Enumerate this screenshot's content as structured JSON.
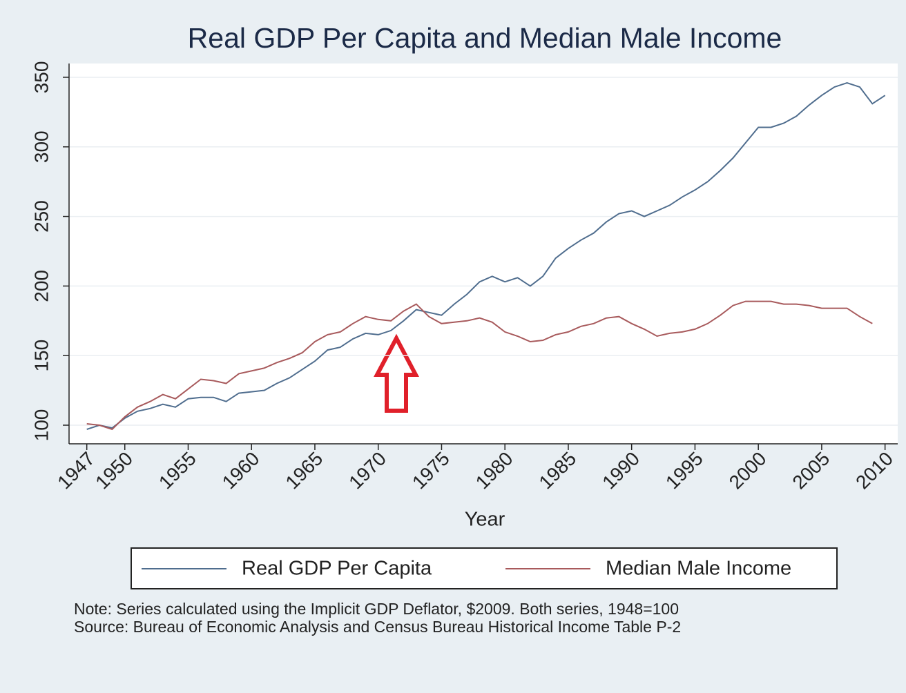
{
  "chart_data": {
    "type": "line",
    "title": "Real GDP Per Capita and Median Male Income",
    "xlabel": "Year",
    "x": [
      1947,
      1948,
      1949,
      1950,
      1951,
      1952,
      1953,
      1954,
      1955,
      1956,
      1957,
      1958,
      1959,
      1960,
      1961,
      1962,
      1963,
      1964,
      1965,
      1966,
      1967,
      1968,
      1969,
      1970,
      1971,
      1972,
      1973,
      1974,
      1975,
      1976,
      1977,
      1978,
      1979,
      1980,
      1981,
      1982,
      1983,
      1984,
      1985,
      1986,
      1987,
      1988,
      1989,
      1990,
      1991,
      1992,
      1993,
      1994,
      1995,
      1996,
      1997,
      1998,
      1999,
      2000,
      2001,
      2002,
      2003,
      2004,
      2005,
      2006,
      2007,
      2008,
      2009,
      2010
    ],
    "series": [
      {
        "name": "Real GDP Per Capita",
        "color": "#4f6d8e",
        "values": [
          97,
          100,
          98,
          105,
          110,
          112,
          115,
          113,
          119,
          120,
          120,
          117,
          123,
          124,
          125,
          130,
          134,
          140,
          146,
          154,
          156,
          162,
          166,
          165,
          168,
          175,
          183,
          181,
          179,
          187,
          194,
          203,
          207,
          203,
          206,
          200,
          207,
          220,
          227,
          233,
          238,
          246,
          252,
          254,
          250,
          254,
          258,
          264,
          269,
          275,
          283,
          292,
          303,
          314,
          314,
          317,
          322,
          330,
          337,
          343,
          346,
          343,
          331,
          337
        ]
      },
      {
        "name": "Median Male Income",
        "color": "#a85a5c",
        "values": [
          101,
          100,
          97,
          106,
          113,
          117,
          122,
          119,
          126,
          133,
          132,
          130,
          137,
          139,
          141,
          145,
          148,
          152,
          160,
          165,
          167,
          173,
          178,
          176,
          175,
          182,
          187,
          178,
          173,
          174,
          175,
          177,
          174,
          167,
          164,
          160,
          161,
          165,
          167,
          171,
          173,
          177,
          178,
          173,
          169,
          164,
          166,
          167,
          169,
          173,
          179,
          186,
          189,
          189,
          189,
          187,
          187,
          186,
          184,
          184,
          184,
          178,
          173,
          null
        ]
      }
    ],
    "xlim": [
      1945.6,
      2011.0
    ],
    "xticks": [
      1947,
      1950,
      1955,
      1960,
      1965,
      1970,
      1975,
      1980,
      1985,
      1990,
      1995,
      2000,
      2005,
      2010
    ],
    "ylim": [
      86.6,
      359.9
    ],
    "yticks": [
      100,
      150,
      200,
      250,
      300,
      350
    ],
    "grid": true,
    "legend": "bottom",
    "notes": [
      "Note: Series calculated using the Implicit GDP Deflator, $2009. Both series, 1948=100",
      "Source: Bureau of Economic Analysis and Census Bureau Historical Income Table P-2"
    ]
  }
}
